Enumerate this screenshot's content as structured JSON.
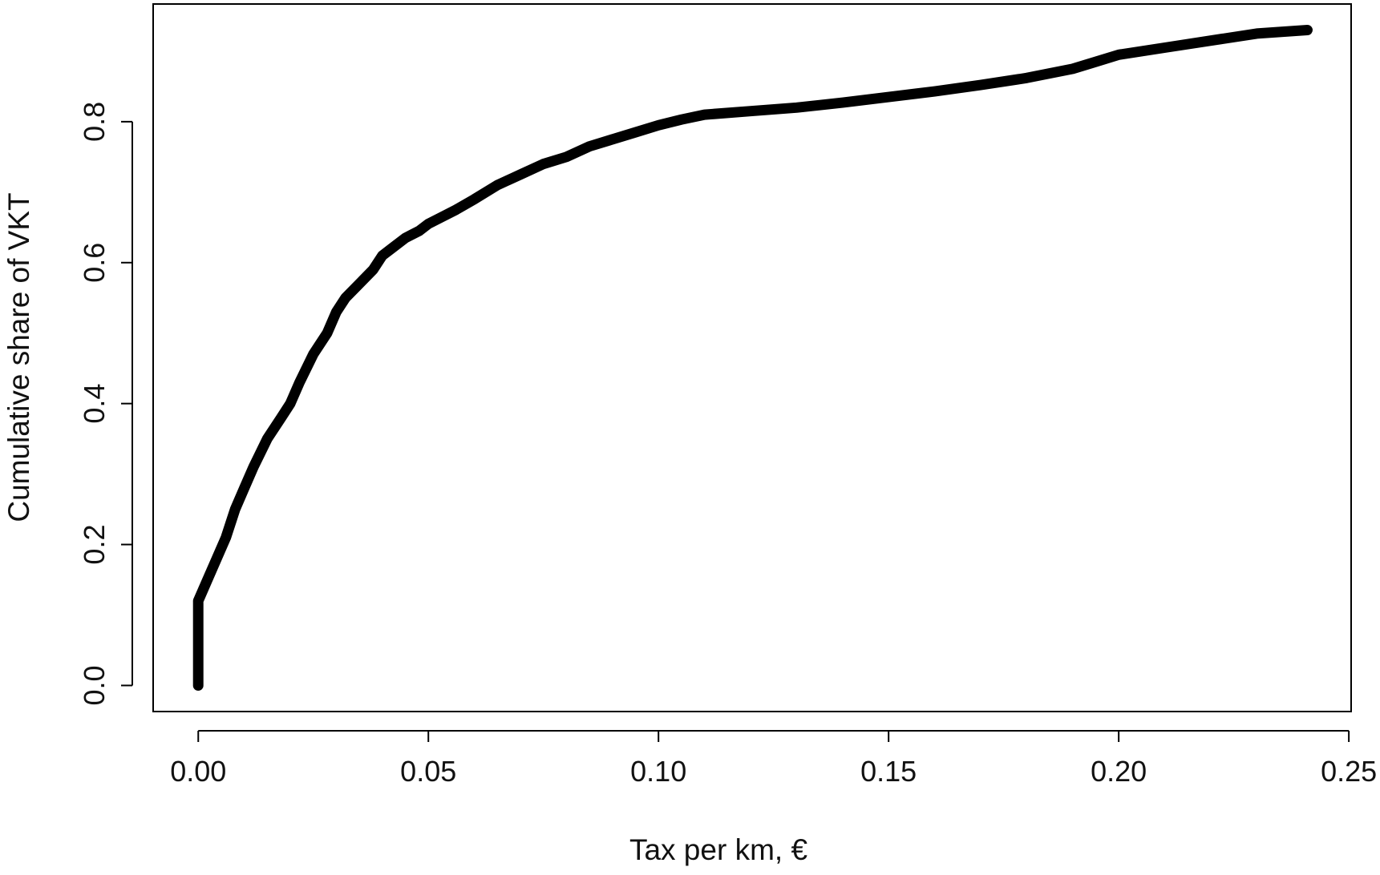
{
  "chart_data": {
    "type": "line",
    "title": "",
    "xlabel": "Tax per km, €",
    "ylabel": "Cumulative share of VKT",
    "xlim": [
      -0.0098,
      0.2505
    ],
    "ylim": [
      -0.037,
      0.967
    ],
    "x_ticks": [
      0.0,
      0.05,
      0.1,
      0.15,
      0.2,
      0.25
    ],
    "x_tick_labels": [
      "0.00",
      "0.05",
      "0.10",
      "0.15",
      "0.20",
      "0.25"
    ],
    "y_ticks": [
      0.0,
      0.2,
      0.4,
      0.6,
      0.8
    ],
    "y_tick_labels": [
      "0.0",
      "0.2",
      "0.4",
      "0.6",
      "0.8"
    ],
    "grid": false,
    "legend": "none",
    "line_color": "#000000",
    "series": [
      {
        "x": [
          0.0,
          0.0,
          0.002,
          0.004,
          0.006,
          0.008,
          0.01,
          0.012,
          0.015,
          0.018,
          0.02,
          0.022,
          0.025,
          0.028,
          0.03,
          0.032,
          0.035,
          0.038,
          0.04,
          0.042,
          0.045,
          0.048,
          0.05,
          0.053,
          0.056,
          0.06,
          0.065,
          0.07,
          0.075,
          0.08,
          0.085,
          0.09,
          0.095,
          0.1,
          0.105,
          0.11,
          0.12,
          0.13,
          0.14,
          0.15,
          0.16,
          0.17,
          0.18,
          0.19,
          0.195,
          0.2,
          0.21,
          0.22,
          0.23,
          0.241
        ],
        "y": [
          0.0,
          0.12,
          0.15,
          0.18,
          0.21,
          0.25,
          0.28,
          0.31,
          0.35,
          0.38,
          0.4,
          0.43,
          0.47,
          0.5,
          0.53,
          0.55,
          0.57,
          0.59,
          0.61,
          0.62,
          0.635,
          0.645,
          0.655,
          0.665,
          0.675,
          0.69,
          0.71,
          0.725,
          0.74,
          0.75,
          0.765,
          0.775,
          0.785,
          0.795,
          0.803,
          0.81,
          0.815,
          0.82,
          0.827,
          0.835,
          0.843,
          0.852,
          0.862,
          0.875,
          0.885,
          0.895,
          0.905,
          0.915,
          0.925,
          0.93
        ]
      }
    ]
  }
}
